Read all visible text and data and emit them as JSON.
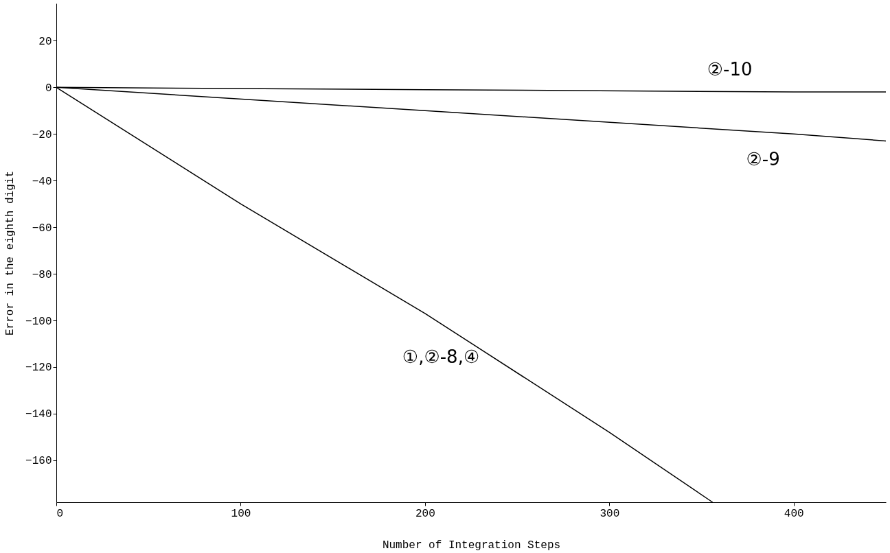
{
  "chart_data": {
    "type": "line",
    "xlabel": "Number of Integration Steps",
    "ylabel": "Error in the eighth digit",
    "xlim": [
      0,
      450
    ],
    "xticks": [
      0,
      100,
      200,
      300,
      400
    ],
    "ylim": [
      -178,
      36
    ],
    "yticks": [
      20,
      0,
      -20,
      -40,
      -60,
      -80,
      -100,
      -120,
      -140,
      -160
    ],
    "grid": false,
    "legend": false,
    "marker": "none",
    "line_style": "solid",
    "series": [
      {
        "color": "#000000",
        "x": [
          0,
          100,
          200,
          300,
          356
        ],
        "values": [
          0,
          -50,
          -97,
          -148,
          -178
        ]
      },
      {
        "color": "#000000",
        "x": [
          0,
          200,
          400,
          450
        ],
        "values": [
          0,
          -10,
          -20,
          -23
        ]
      },
      {
        "color": "#000000",
        "x": [
          0,
          200,
          400,
          450
        ],
        "values": [
          0,
          -1,
          -2,
          -2
        ]
      }
    ],
    "annotations": [
      {
        "text": "②-10",
        "x": 385,
        "y": -2
      },
      {
        "text": "②-9",
        "x": 400,
        "y": -20
      },
      {
        "text": "①,②-8,④",
        "x": 237,
        "y": -116
      }
    ]
  }
}
